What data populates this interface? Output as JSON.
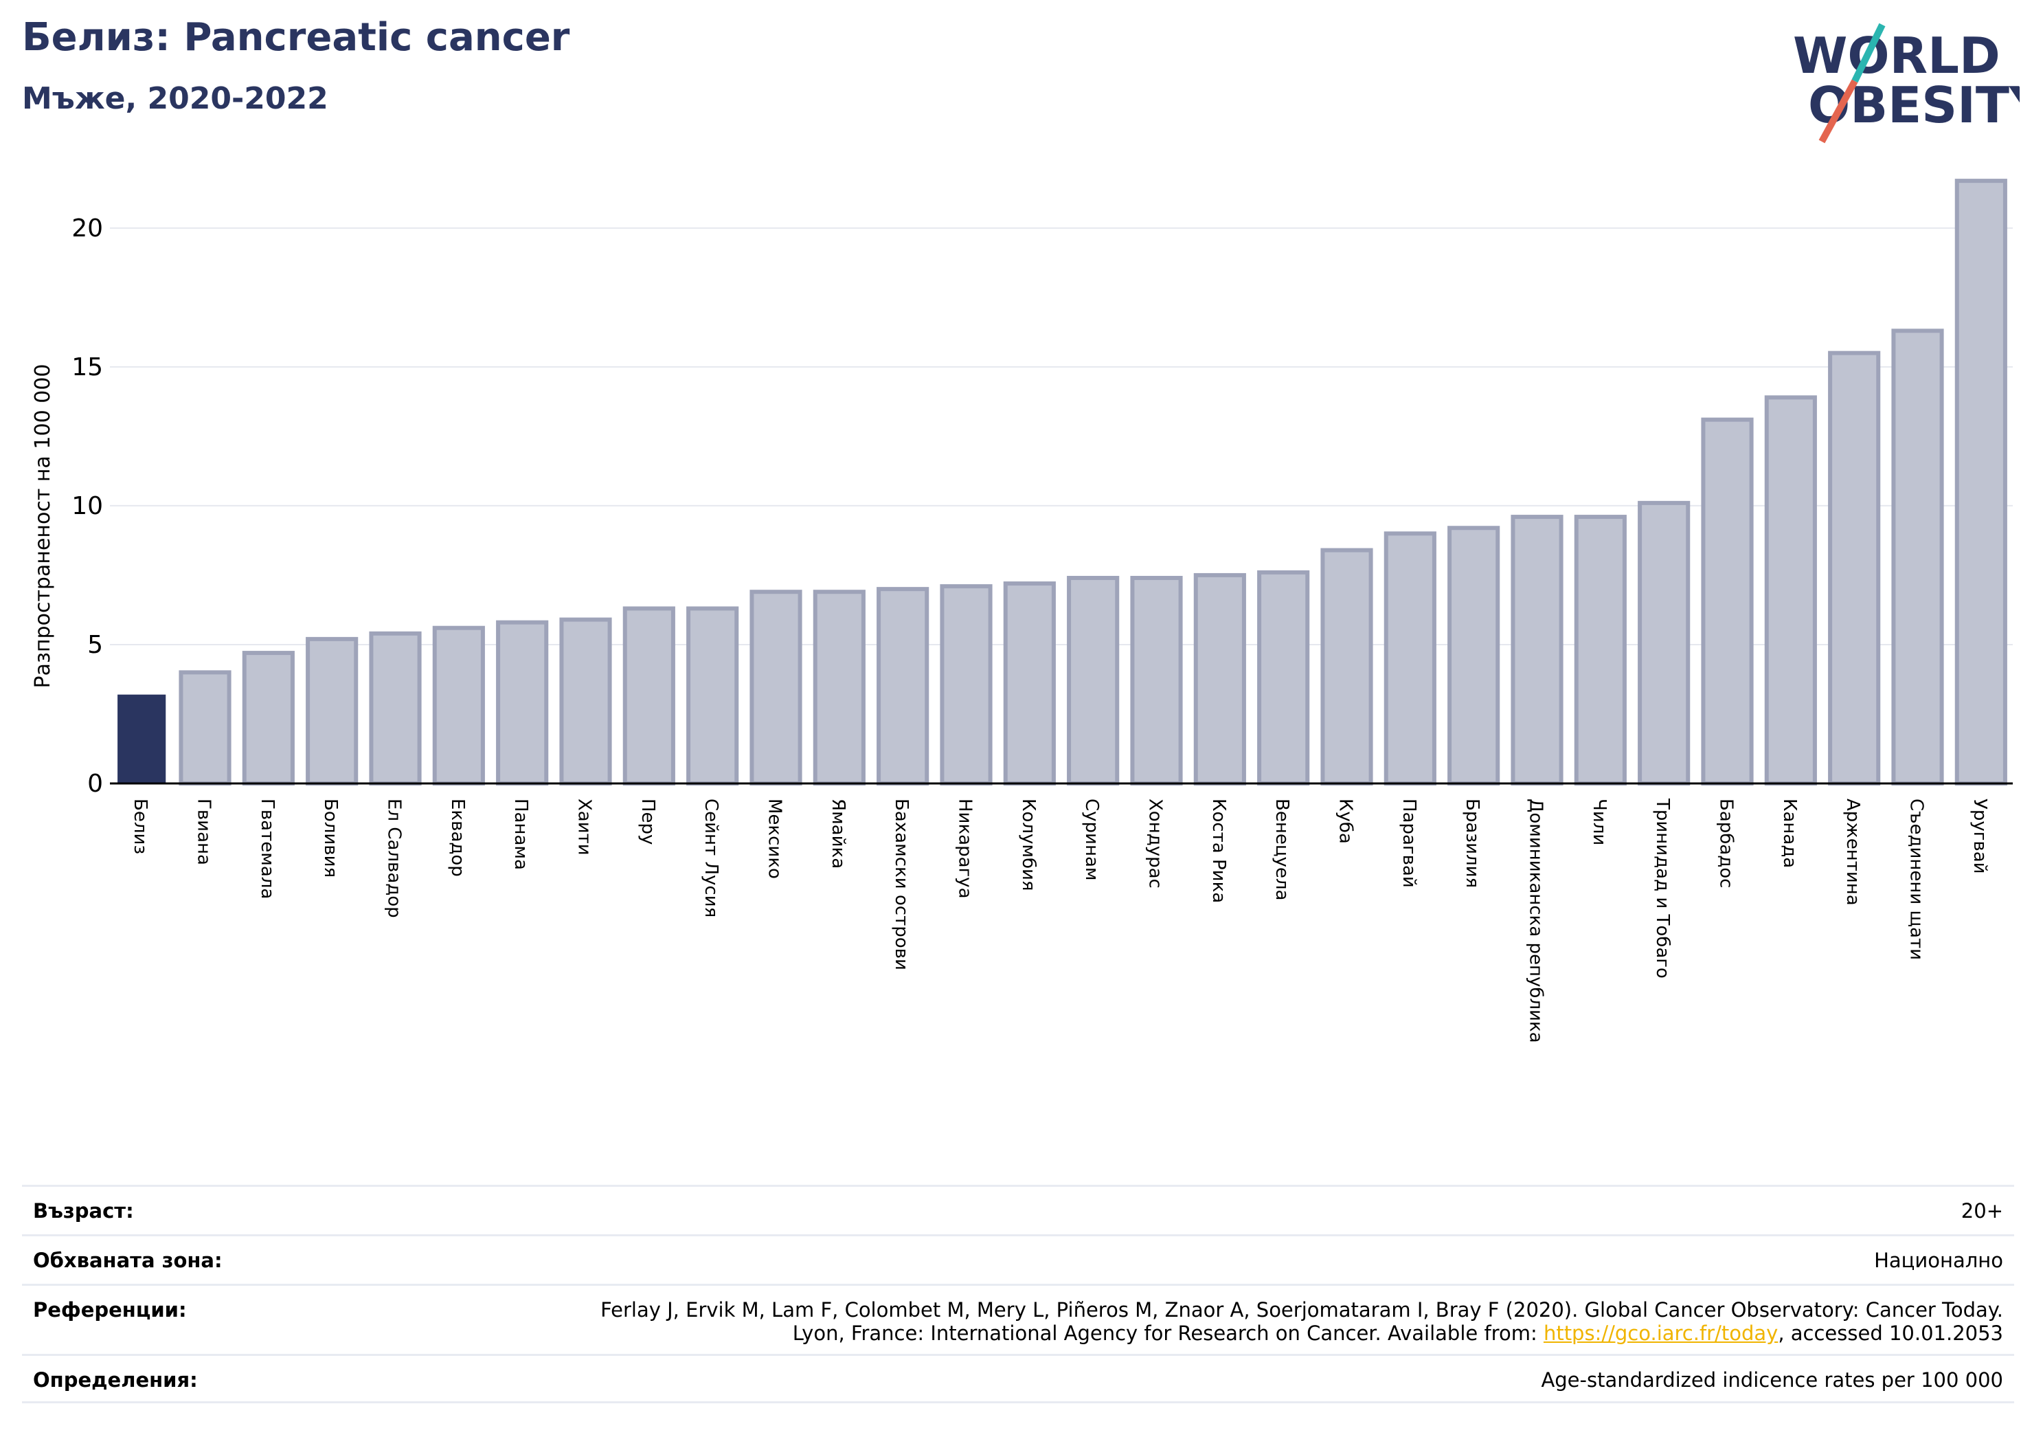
{
  "header": {
    "title": "Белиз: Pancreatic cancer",
    "subtitle": "Мъже, 2020-2022"
  },
  "logo": {
    "line1": "WORLD",
    "line2": "OBESITY"
  },
  "colors": {
    "highlight": "#2a3560",
    "bar_fill": "#bfc3d1",
    "bar_stroke": "#9ea3b9",
    "grid": "#e6e8ef",
    "logo_text": "#2a3560",
    "logo_teal": "#2bb5b0",
    "logo_coral": "#e4654f"
  },
  "chart_data": {
    "type": "bar",
    "ylabel": "Разпространеност  на 100 000",
    "ylim": [
      0,
      22
    ],
    "yticks": [
      0,
      5,
      10,
      15,
      20
    ],
    "grid": true,
    "highlight": "Белиз",
    "categories": [
      "Белиз",
      "Гвиана",
      "Гватемала",
      "Боливия",
      "Ел Салвадор",
      "Еквадор",
      "Панама",
      "Хаити",
      "Перу",
      "Сейнт Лусия",
      "Мексико",
      "Ямайка",
      "Бахамски острови",
      "Никарагуа",
      "Колумбия",
      "Суринам",
      "Хондурас",
      "Коста Рика",
      "Венецуела",
      "Куба",
      "Парагвай",
      "Бразилия",
      "Доминиканска република",
      "Чили",
      "Тринидад и Тобаго",
      "Барбадос",
      "Канада",
      "Аржентина",
      "Съединени щати",
      "Уругвай"
    ],
    "values": [
      3.2,
      4.0,
      4.7,
      5.2,
      5.4,
      5.6,
      5.8,
      5.9,
      6.3,
      6.3,
      6.9,
      6.9,
      7.0,
      7.1,
      7.2,
      7.4,
      7.4,
      7.5,
      7.6,
      8.4,
      9.0,
      9.2,
      9.6,
      9.6,
      10.1,
      13.1,
      13.9,
      15.5,
      16.3,
      21.7
    ]
  },
  "meta": {
    "age_label": "Възраст:",
    "age_value": "20+",
    "coverage_label": "Обхваната зона:",
    "coverage_value": "Национално",
    "references_label": "Референции:",
    "references_line1": "Ferlay J, Ervik M, Lam F, Colombet M, Mery L, Piñeros M, Znaor A, Soerjomataram I, Bray F (2020). Global Cancer Observatory: Cancer Today.",
    "references_line2_prefix": "Lyon, France: International Agency for Research on Cancer. Available from: ",
    "references_link": "https://gco.iarc.fr/today",
    "references_line2_suffix": ", accessed 10.01.2053",
    "definitions_label": "Определения:",
    "definitions_value": "Age-standardized indicence rates per 100 000"
  }
}
